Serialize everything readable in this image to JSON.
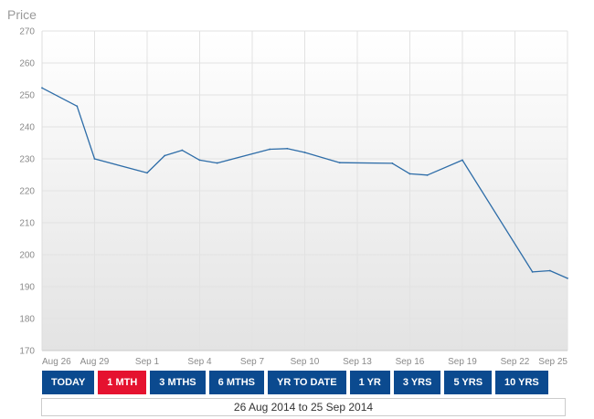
{
  "chart_data": {
    "type": "line",
    "ylabel": "Price",
    "ylim": [
      170,
      270
    ],
    "yticks": [
      170,
      180,
      190,
      200,
      210,
      220,
      230,
      240,
      250,
      260,
      270
    ],
    "xlim": [
      "2014-08-26",
      "2014-09-25"
    ],
    "xtick_labels": [
      "Aug 26",
      "Aug 29",
      "Sep 1",
      "Sep 4",
      "Sep 7",
      "Sep 10",
      "Sep 13",
      "Sep 16",
      "Sep 19",
      "Sep 22",
      "Sep 25"
    ],
    "xtick_dates": [
      "2014-08-26",
      "2014-08-29",
      "2014-09-01",
      "2014-09-04",
      "2014-09-07",
      "2014-09-10",
      "2014-09-13",
      "2014-09-16",
      "2014-09-19",
      "2014-09-22",
      "2014-09-25"
    ],
    "grid": true,
    "series": [
      {
        "color": "#2e6da8",
        "x": [
          "2014-08-26",
          "2014-08-28",
          "2014-08-29",
          "2014-09-01",
          "2014-09-02",
          "2014-09-03",
          "2014-09-04",
          "2014-09-05",
          "2014-09-08",
          "2014-09-09",
          "2014-09-10",
          "2014-09-12",
          "2014-09-15",
          "2014-09-16",
          "2014-09-17",
          "2014-09-19",
          "2014-09-23",
          "2014-09-24",
          "2014-09-25"
        ],
        "values": [
          252.2,
          246.5,
          230.0,
          225.6,
          231.0,
          232.7,
          229.6,
          228.7,
          233.0,
          233.2,
          232.0,
          228.8,
          228.6,
          225.3,
          224.9,
          229.6,
          194.6,
          195.0,
          192.6
        ]
      }
    ]
  },
  "range_buttons": [
    "TODAY",
    "1 MTH",
    "3 MTHS",
    "6 MTHS",
    "YR TO DATE",
    "1 YR",
    "3 YRS",
    "5 YRS",
    "10 YRS"
  ],
  "active_range": "1 MTH",
  "colors": {
    "button": "#0b4a8f",
    "active_button": "#e5122f"
  },
  "date_range_text": "26 Aug 2014 to 25 Sep 2014"
}
